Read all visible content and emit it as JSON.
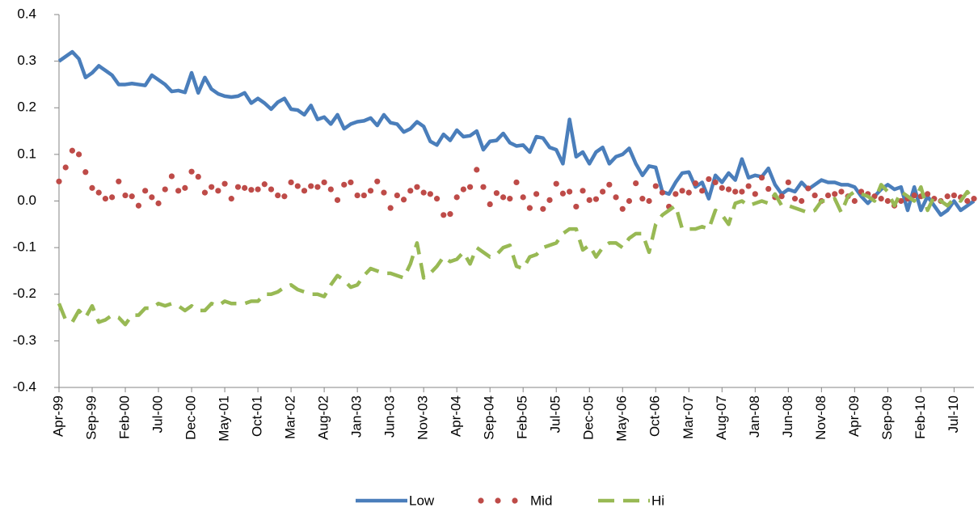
{
  "chart_data": {
    "type": "line",
    "categories": [
      "Apr-99",
      null,
      null,
      null,
      null,
      "Sep-99",
      null,
      null,
      null,
      null,
      "Feb-00",
      null,
      null,
      null,
      null,
      "Jul-00",
      null,
      null,
      null,
      null,
      "Dec-00",
      null,
      null,
      null,
      null,
      "May-01",
      null,
      null,
      null,
      null,
      "Oct-01",
      null,
      null,
      null,
      null,
      "Mar-02",
      null,
      null,
      null,
      null,
      "Aug-02",
      null,
      null,
      null,
      null,
      "Jan-03",
      null,
      null,
      null,
      null,
      "Jun-03",
      null,
      null,
      null,
      null,
      "Nov-03",
      null,
      null,
      null,
      null,
      "Apr-04",
      null,
      null,
      null,
      null,
      "Sep-04",
      null,
      null,
      null,
      null,
      "Feb-05",
      null,
      null,
      null,
      null,
      "Jul-05",
      null,
      null,
      null,
      null,
      "Dec-05",
      null,
      null,
      null,
      null,
      "May-06",
      null,
      null,
      null,
      null,
      "Oct-06",
      null,
      null,
      null,
      null,
      "Mar-07",
      null,
      null,
      null,
      null,
      "Aug-07",
      null,
      null,
      null,
      null,
      "Jan-08",
      null,
      null,
      null,
      null,
      "Jun-08",
      null,
      null,
      null,
      null,
      "Nov-08",
      null,
      null,
      null,
      null,
      "Apr-09",
      null,
      null,
      null,
      null,
      "Sep-09",
      null,
      null,
      null,
      null,
      "Feb-10",
      null,
      null,
      null,
      null,
      "Jul-10",
      null,
      null,
      null
    ],
    "series": [
      {
        "name": "Low",
        "color": "#4a7ebb",
        "style": "solid",
        "values": [
          0.3,
          0.31,
          0.32,
          0.305,
          0.265,
          0.275,
          0.29,
          0.28,
          0.27,
          0.25,
          0.25,
          0.252,
          0.25,
          0.248,
          0.27,
          0.26,
          0.25,
          0.235,
          0.237,
          0.233,
          0.275,
          0.232,
          0.265,
          0.24,
          0.23,
          0.225,
          0.223,
          0.225,
          0.232,
          0.21,
          0.22,
          0.21,
          0.197,
          0.212,
          0.22,
          0.197,
          0.195,
          0.185,
          0.205,
          0.175,
          0.18,
          0.165,
          0.185,
          0.155,
          0.165,
          0.17,
          0.172,
          0.178,
          0.162,
          0.185,
          0.168,
          0.165,
          0.148,
          0.155,
          0.17,
          0.16,
          0.128,
          0.12,
          0.143,
          0.13,
          0.152,
          0.138,
          0.14,
          0.15,
          0.11,
          0.128,
          0.13,
          0.145,
          0.125,
          0.118,
          0.12,
          0.105,
          0.138,
          0.135,
          0.115,
          0.11,
          0.08,
          0.175,
          0.095,
          0.105,
          0.08,
          0.105,
          0.115,
          0.08,
          0.095,
          0.1,
          0.113,
          0.08,
          0.055,
          0.075,
          0.072,
          0.02,
          0.015,
          0.04,
          0.06,
          0.062,
          0.03,
          0.04,
          0.005,
          0.055,
          0.04,
          0.06,
          0.045,
          0.09,
          0.05,
          0.055,
          0.052,
          0.07,
          0.035,
          0.015,
          0.025,
          0.02,
          0.04,
          0.025,
          0.035,
          0.045,
          0.04,
          0.04,
          0.035,
          0.035,
          0.03,
          0.01,
          -0.005,
          0.01,
          0.025,
          0.035,
          0.025,
          0.03,
          -0.02,
          0.03,
          -0.02,
          0.01,
          -0.01,
          -0.03,
          -0.02,
          0.0,
          -0.02,
          -0.01,
          0.0
        ]
      },
      {
        "name": "Mid",
        "color": "#be4b48",
        "style": "dots",
        "values": [
          0.042,
          0.072,
          0.108,
          0.1,
          0.062,
          0.028,
          0.018,
          0.005,
          0.008,
          0.042,
          0.012,
          0.01,
          -0.01,
          0.022,
          0.008,
          -0.005,
          0.025,
          0.053,
          0.022,
          0.028,
          0.063,
          0.052,
          0.018,
          0.03,
          0.022,
          0.037,
          0.005,
          0.03,
          0.028,
          0.024,
          0.025,
          0.036,
          0.025,
          0.012,
          0.01,
          0.04,
          0.032,
          0.022,
          0.032,
          0.03,
          0.04,
          0.025,
          0.002,
          0.035,
          0.04,
          0.012,
          0.012,
          0.022,
          0.042,
          0.018,
          -0.015,
          0.012,
          0.003,
          0.022,
          0.03,
          0.018,
          0.015,
          0.005,
          -0.03,
          -0.028,
          0.008,
          0.025,
          0.03,
          0.067,
          0.03,
          -0.007,
          0.017,
          0.008,
          0.005,
          0.04,
          0.008,
          -0.015,
          0.015,
          -0.017,
          0.002,
          0.037,
          0.016,
          0.02,
          -0.012,
          0.022,
          0.002,
          0.004,
          0.02,
          0.035,
          0.008,
          -0.017,
          0.0,
          0.038,
          0.005,
          0.0,
          0.032,
          0.018,
          -0.012,
          0.015,
          0.022,
          0.018,
          0.038,
          0.022,
          0.047,
          0.04,
          0.028,
          0.025,
          0.02,
          0.02,
          0.032,
          0.015,
          0.05,
          0.026,
          0.008,
          0.01,
          0.04,
          0.005,
          0.0,
          0.027,
          0.012,
          0.0,
          0.012,
          0.015,
          0.02,
          0.01,
          0.0,
          0.02,
          0.015,
          0.01,
          0.005,
          0.0,
          -0.01,
          0.0,
          0.005,
          0.012,
          0.01,
          0.015,
          0.005,
          0.0,
          0.01,
          0.012,
          0.008,
          0.0,
          0.005
        ]
      },
      {
        "name": "Hi",
        "color": "#98b954",
        "style": "dashed",
        "values": [
          -0.22,
          -0.255,
          -0.26,
          -0.235,
          -0.25,
          -0.225,
          -0.26,
          -0.255,
          -0.245,
          -0.25,
          -0.265,
          -0.245,
          -0.245,
          -0.23,
          -0.23,
          -0.22,
          -0.225,
          -0.22,
          -0.225,
          -0.235,
          -0.225,
          -0.235,
          -0.235,
          -0.22,
          -0.225,
          -0.215,
          -0.22,
          -0.22,
          -0.22,
          -0.215,
          -0.215,
          -0.2,
          -0.2,
          -0.195,
          -0.185,
          -0.18,
          -0.19,
          -0.195,
          -0.2,
          -0.2,
          -0.205,
          -0.18,
          -0.16,
          -0.17,
          -0.185,
          -0.18,
          -0.16,
          -0.145,
          -0.15,
          -0.155,
          -0.155,
          -0.16,
          -0.165,
          -0.135,
          -0.09,
          -0.165,
          -0.155,
          -0.14,
          -0.12,
          -0.13,
          -0.125,
          -0.11,
          -0.135,
          -0.1,
          -0.11,
          -0.12,
          -0.115,
          -0.1,
          -0.095,
          -0.14,
          -0.145,
          -0.12,
          -0.115,
          -0.1,
          -0.095,
          -0.09,
          -0.07,
          -0.06,
          -0.06,
          -0.105,
          -0.095,
          -0.12,
          -0.1,
          -0.09,
          -0.09,
          -0.1,
          -0.08,
          -0.07,
          -0.07,
          -0.11,
          -0.05,
          -0.03,
          -0.02,
          -0.01,
          -0.06,
          -0.06,
          -0.06,
          -0.055,
          -0.06,
          -0.02,
          -0.03,
          -0.05,
          -0.005,
          0.0,
          -0.01,
          -0.005,
          0.0,
          -0.005,
          0.015,
          -0.01,
          -0.01,
          -0.015,
          -0.02,
          -0.025,
          -0.02,
          0.0,
          0.0,
          0.005,
          -0.025,
          0.01,
          0.02,
          0.015,
          0.01,
          0.0,
          0.035,
          0.02,
          -0.01,
          0.02,
          0.01,
          0.0,
          0.03,
          -0.02,
          0.01,
          0.0,
          -0.01,
          0.005,
          0.0,
          0.02,
          0.0
        ]
      }
    ],
    "ylim": [
      -0.4,
      0.4
    ],
    "yticks": [
      -0.4,
      -0.3,
      -0.2,
      -0.1,
      {
        "value": 0,
        "label": "0.0"
      },
      0.1,
      0.2,
      0.3,
      0.4
    ],
    "legend": "bottom"
  }
}
